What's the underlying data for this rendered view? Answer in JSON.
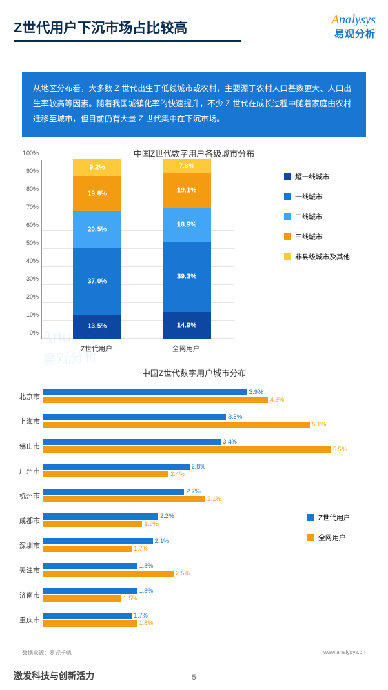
{
  "header": {
    "title": "Z世代用户下沉市场占比较高",
    "logo_en_orange": "A",
    "logo_en_rest": "nalysys",
    "logo_cn": "易观分析"
  },
  "intro": "从地区分布看，大多数 Z 世代出生于低线城市或农村，主要源于农村人口基数更大、人口出生率较高等因素。随着我国城镇化率的快速提升，不少 Z 世代在成长过程中随着家庭由农村迁移至城市，但目前仍有大量 Z 世代集中在下沉市场。",
  "stacked": {
    "title": "中国Z世代数字用户各级城市分布",
    "y_ticks": [
      "0%",
      "10%",
      "20%",
      "30%",
      "40%",
      "50%",
      "60%",
      "70%",
      "80%",
      "90%",
      "100%"
    ],
    "colors": {
      "super_tier1": "#0d47a1",
      "tier1": "#1976d2",
      "tier2": "#42a5f5",
      "tier3": "#f39c12",
      "other": "#ffc93c"
    },
    "legend": [
      {
        "key": "super_tier1",
        "label": "超一线城市"
      },
      {
        "key": "tier1",
        "label": "一线城市"
      },
      {
        "key": "tier2",
        "label": "二线城市"
      },
      {
        "key": "tier3",
        "label": "三线城市"
      },
      {
        "key": "other",
        "label": "非县级城市及其他"
      }
    ],
    "categories": [
      {
        "name": "Z世代用户",
        "values": {
          "super_tier1": 13.5,
          "tier1": 37.0,
          "tier2": 20.5,
          "tier3": 19.8,
          "other": 9.2
        }
      },
      {
        "name": "全网用户",
        "values": {
          "super_tier1": 14.9,
          "tier1": 39.3,
          "tier2": 18.9,
          "tier3": 19.1,
          "other": 7.8
        }
      }
    ]
  },
  "hbar": {
    "title": "中国Z世代数字用户城市分布",
    "xmax": 6.0,
    "colors": {
      "genz": "#1976d2",
      "all": "#f39c12"
    },
    "legend": [
      {
        "key": "genz",
        "label": "Z世代用户"
      },
      {
        "key": "all",
        "label": "全网用户"
      }
    ],
    "rows": [
      {
        "city": "北京市",
        "genz": 3.9,
        "all": 4.3
      },
      {
        "city": "上海市",
        "genz": 3.5,
        "all": 5.1
      },
      {
        "city": "佛山市",
        "genz": 3.4,
        "all": 5.5
      },
      {
        "city": "广州市",
        "genz": 2.8,
        "all": 2.4
      },
      {
        "city": "杭州市",
        "genz": 2.7,
        "all": 3.1
      },
      {
        "city": "成都市",
        "genz": 2.2,
        "all": 1.9
      },
      {
        "city": "深圳市",
        "genz": 2.1,
        "all": 1.7
      },
      {
        "city": "天津市",
        "genz": 1.8,
        "all": 2.5
      },
      {
        "city": "济南市",
        "genz": 1.8,
        "all": 1.5
      },
      {
        "city": "重庆市",
        "genz": 1.7,
        "all": 1.8
      }
    ]
  },
  "footer": {
    "source": "数据来源：易观千帆",
    "url": "www.analysys.cn",
    "tagline": "激发科技与创新活力",
    "page": "5"
  },
  "watermark": {
    "en": "Analysys",
    "cn": "易观分析"
  }
}
